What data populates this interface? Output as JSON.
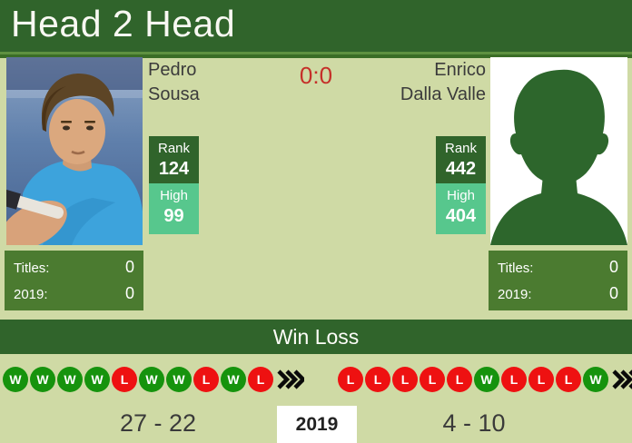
{
  "header": {
    "title": "Head 2 Head"
  },
  "match": {
    "score": "0:0"
  },
  "players": {
    "left": {
      "name": "Pedro Sousa",
      "rank_label": "Rank",
      "rank": "124",
      "high_label": "High",
      "high": "99",
      "titles_label": "Titles:",
      "titles_value": "0",
      "year_label": "2019:",
      "year_value": "0",
      "last_results": [
        "W",
        "W",
        "W",
        "W",
        "L",
        "W",
        "W",
        "L",
        "W",
        "L"
      ],
      "season_record": "27 - 22"
    },
    "right": {
      "name": "Enrico Dalla Valle",
      "rank_label": "Rank",
      "rank": "442",
      "high_label": "High",
      "high": "404",
      "titles_label": "Titles:",
      "titles_value": "0",
      "year_label": "2019:",
      "year_value": "0",
      "last_results": [
        "L",
        "L",
        "L",
        "L",
        "L",
        "W",
        "L",
        "L",
        "L",
        "W"
      ],
      "season_record": "4 - 10"
    }
  },
  "win_loss": {
    "title": "Win Loss",
    "year": "2019"
  },
  "icons": {
    "more_results": "triple-chevron-right"
  },
  "colors": {
    "header_green": "#30642b",
    "panel_green": "#4b7b30",
    "high_mint": "#57c78d",
    "win_green": "#16930d",
    "loss_red": "#ee1111",
    "score_red": "#c53029",
    "background": "#cfdaa5",
    "silhouette_green": "#2d662c"
  }
}
